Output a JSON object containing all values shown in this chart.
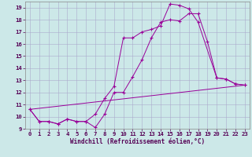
{
  "xlabel": "Windchill (Refroidissement éolien,°C)",
  "bg_color": "#cce8e8",
  "grid_color": "#aaaacc",
  "line_color": "#990099",
  "xlim": [
    -0.5,
    23.5
  ],
  "ylim": [
    9,
    19.5
  ],
  "yticks": [
    9,
    10,
    11,
    12,
    13,
    14,
    15,
    16,
    17,
    18,
    19
  ],
  "xticks": [
    0,
    1,
    2,
    3,
    4,
    5,
    6,
    7,
    8,
    9,
    10,
    11,
    12,
    13,
    14,
    15,
    16,
    17,
    18,
    19,
    20,
    21,
    22,
    23
  ],
  "line1_x": [
    0,
    1,
    2,
    3,
    4,
    5,
    6,
    7,
    8,
    9,
    10,
    11,
    12,
    13,
    14,
    15,
    16,
    17,
    18,
    19,
    20,
    21,
    22,
    23
  ],
  "line1_y": [
    10.6,
    9.6,
    9.6,
    9.4,
    9.8,
    9.6,
    9.6,
    9.1,
    10.2,
    12.0,
    12.0,
    13.3,
    14.7,
    16.5,
    17.8,
    18.0,
    17.9,
    18.5,
    18.5,
    16.2,
    13.2,
    13.1,
    12.7,
    12.6
  ],
  "line2_x": [
    0,
    1,
    2,
    3,
    4,
    5,
    6,
    7,
    8,
    9,
    10,
    11,
    12,
    13,
    14,
    15,
    16,
    17,
    18,
    20,
    21,
    22,
    23
  ],
  "line2_y": [
    10.6,
    9.6,
    9.6,
    9.4,
    9.8,
    9.6,
    9.6,
    10.2,
    11.5,
    12.5,
    16.5,
    16.5,
    17.0,
    17.2,
    17.5,
    19.3,
    19.2,
    18.9,
    17.8,
    13.2,
    13.1,
    12.7,
    12.6
  ],
  "line3_x": [
    0,
    23
  ],
  "line3_y": [
    10.6,
    12.6
  ],
  "tick_fontsize": 5.2,
  "xlabel_fontsize": 5.5
}
